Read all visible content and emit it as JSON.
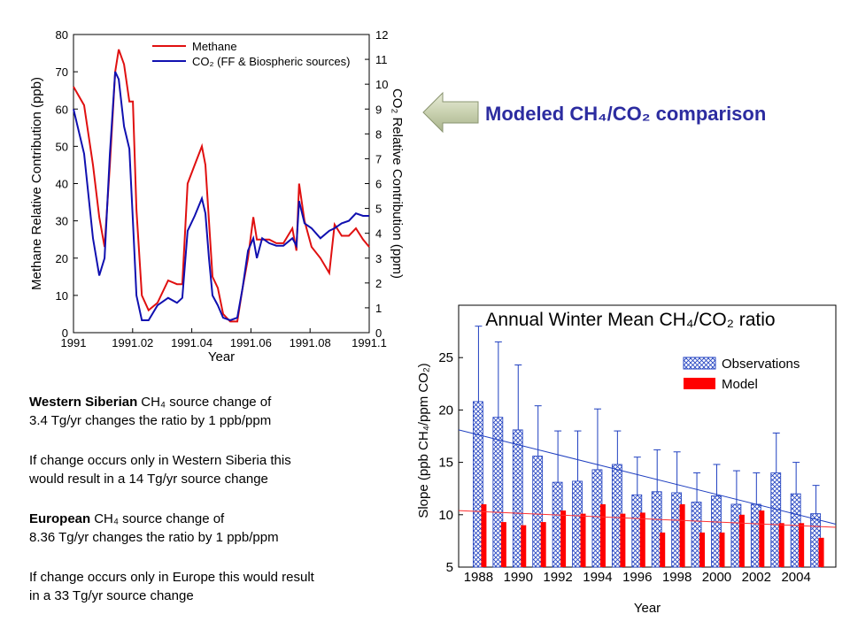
{
  "chart_data": [
    {
      "type": "line",
      "xlabel": "Year",
      "ylabel": "Methane Relative Contribution (ppb)",
      "y2label": "CO₂ Relative Contribution (ppm)",
      "xlim": [
        1991,
        1991.1
      ],
      "xticks": [
        1991,
        1991.02,
        1991.04,
        1991.06,
        1991.08,
        1991.1
      ],
      "ylim": [
        0,
        80
      ],
      "yticks": [
        0,
        10,
        20,
        30,
        40,
        50,
        60,
        70,
        80
      ],
      "y2lim": [
        0,
        12
      ],
      "y2ticks": [
        0,
        1,
        2,
        3,
        4,
        5,
        6,
        7,
        8,
        9,
        10,
        11,
        12
      ],
      "grid": false,
      "legend": "upper-center",
      "x": [
        1991,
        1991.0036,
        1991.0066,
        1991.0087,
        1991.0105,
        1991.0123,
        1991.0141,
        1991.0153,
        1991.0171,
        1991.0189,
        1991.0201,
        1991.0213,
        1991.0231,
        1991.0254,
        1991.0284,
        1991.032,
        1991.035,
        1991.0368,
        1991.0386,
        1991.041,
        1991.0434,
        1991.0446,
        1991.0458,
        1991.047,
        1991.0488,
        1991.0506,
        1991.053,
        1991.0554,
        1991.0572,
        1991.059,
        1991.0608,
        1991.062,
        1991.0638,
        1991.0662,
        1991.0686,
        1991.071,
        1991.074,
        1991.0754,
        1991.0763,
        1991.0781,
        1991.0805,
        1991.0835,
        1991.0865,
        1991.0883,
        1991.0907,
        1991.0931,
        1991.0955,
        1991.0979,
        1991.1
      ],
      "series": [
        {
          "name": "Methane",
          "color": "#e01010",
          "values": [
            66,
            61,
            45,
            31,
            23,
            45,
            70,
            76,
            72,
            62,
            62,
            33,
            10,
            6,
            8,
            14,
            13,
            13,
            40,
            45,
            50,
            45,
            30,
            15,
            12,
            5,
            3,
            3,
            12,
            20,
            31,
            25,
            25,
            25,
            24,
            24,
            28,
            22,
            40,
            30,
            23,
            20,
            16,
            29,
            26,
            26,
            28,
            25,
            23
          ]
        },
        {
          "name": "CO₂ (FF & Biospheric sources)",
          "color": "#1010b0",
          "axis": "y2",
          "values": [
            9,
            7.2,
            3.8,
            2.3,
            3,
            7.2,
            10.5,
            10.2,
            8.3,
            7.4,
            4.5,
            1.5,
            0.5,
            0.5,
            1.1,
            1.4,
            1.2,
            1.4,
            4.1,
            4.7,
            5.4,
            4.8,
            3,
            1.5,
            1.1,
            0.6,
            0.5,
            0.6,
            1.8,
            3.3,
            3.8,
            3,
            3.8,
            3.6,
            3.5,
            3.5,
            3.8,
            3.5,
            5.3,
            4.4,
            4.2,
            3.8,
            4.1,
            4.2,
            4.4,
            4.5,
            4.8,
            4.7,
            4.7
          ]
        }
      ]
    },
    {
      "type": "bar",
      "title": "Annual Winter Mean CH₄/CO₂ ratio",
      "xlabel": "Year",
      "ylabel": "Slope (ppb CH₄/ppm CO₂)",
      "xlim": [
        1987,
        2006
      ],
      "xticks": [
        1988,
        1990,
        1992,
        1994,
        1996,
        1998,
        2000,
        2002,
        2004
      ],
      "ylim": [
        5,
        30
      ],
      "yticks": [
        5,
        10,
        15,
        20,
        25
      ],
      "grid": false,
      "legend": "upper-right",
      "x": [
        1988,
        1989,
        1990,
        1991,
        1992,
        1993,
        1994,
        1995,
        1996,
        1997,
        1998,
        1999,
        2000,
        2001,
        2002,
        2003,
        2004,
        2005
      ],
      "series": [
        {
          "name": "Observations",
          "color": "#2040c0",
          "pattern": "crosshatch",
          "values": [
            20.8,
            19.3,
            18.1,
            15.6,
            13.1,
            13.2,
            14.3,
            14.8,
            11.9,
            12.2,
            12.1,
            11.2,
            11.8,
            11,
            11,
            14,
            12,
            10.1
          ],
          "errors": [
            7.2,
            7.2,
            6.2,
            4.8,
            4.9,
            4.8,
            5.8,
            3.2,
            3.6,
            4,
            3.9,
            2.8,
            3,
            3.2,
            3,
            3.8,
            3,
            2.7
          ]
        },
        {
          "name": "Model",
          "color": "#ff0000",
          "values": [
            11,
            9.3,
            9,
            9.3,
            10.4,
            10.1,
            11,
            10.1,
            10.2,
            8.3,
            11,
            8.3,
            8.3,
            10,
            10.4,
            9.2,
            9.2,
            7.8
          ]
        }
      ],
      "trendlines": [
        {
          "color": "#2040c0",
          "x": [
            1987,
            2006
          ],
          "values": [
            18.1,
            9.1
          ]
        },
        {
          "color": "#ff3030",
          "x": [
            1987,
            2006
          ],
          "values": [
            10.4,
            8.8
          ]
        }
      ]
    }
  ],
  "callout": "Modeled CH₄/CO₂ comparison",
  "notes": [
    {
      "bold": "Western Siberian",
      "lines": [
        "CH₄ source change of",
        "3.4 Tg/yr changes the ratio by 1 ppb/ppm"
      ]
    },
    {
      "lines": [
        "If change occurs only in Western Siberia  this",
        "would result in a 14 Tg/yr source change"
      ]
    },
    {
      "bold": "European",
      "lines": [
        "CH₄ source change of",
        "8.36 Tg/yr changes the ratio by 1 ppb/ppm"
      ]
    },
    {
      "lines": [
        "If change occurs only in Europe  this would result",
        "in a 33 Tg/yr source change"
      ]
    }
  ]
}
